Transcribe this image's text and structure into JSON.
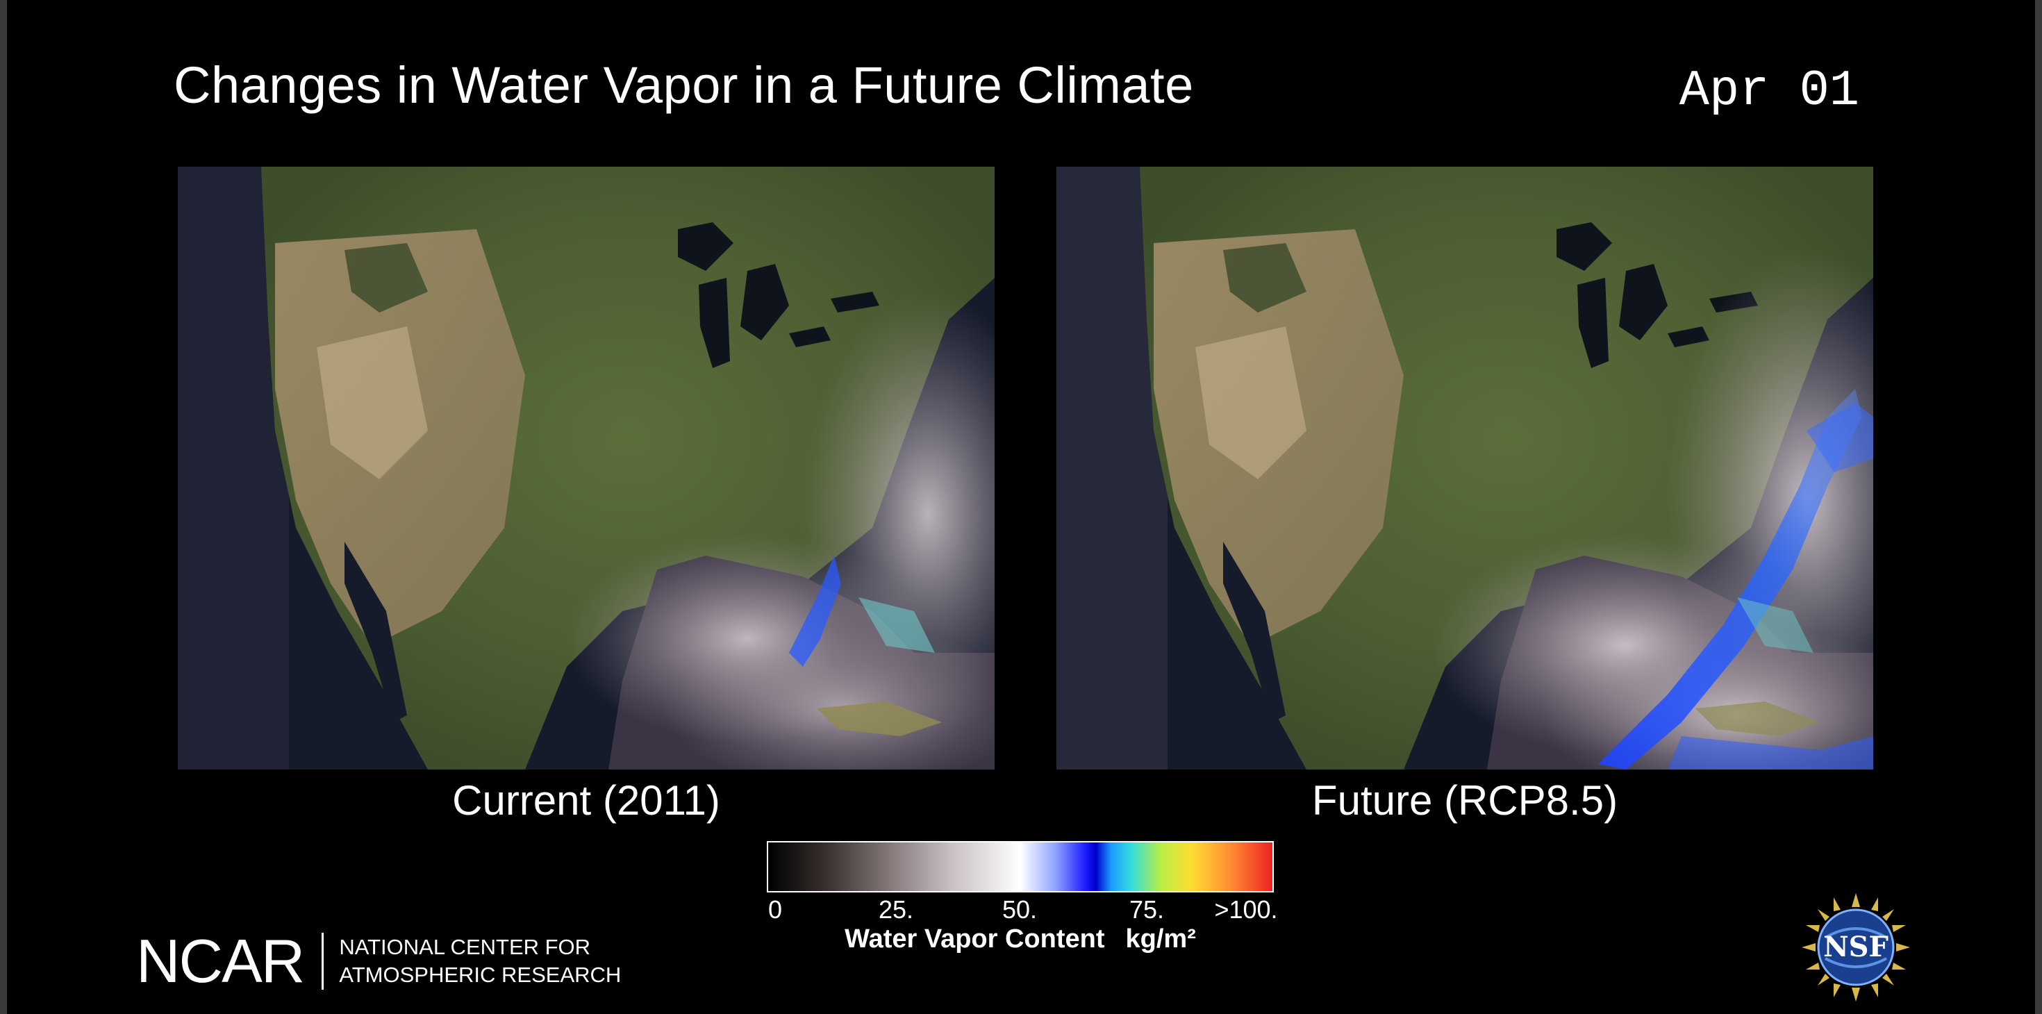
{
  "title": "Changes in Water Vapor in a Future Climate",
  "date": "Apr 01",
  "panels": [
    {
      "caption": "Current (2011)"
    },
    {
      "caption": "Future (RCP8.5)"
    }
  ],
  "colorbar": {
    "ticks": [
      "0",
      "25.",
      "50.",
      "75.",
      ">100."
    ],
    "label": "Water Vapor Content",
    "unit": "kg/m²"
  },
  "logos": {
    "ncar_word": "NCAR",
    "ncar_line1": "NATIONAL CENTER FOR",
    "ncar_line2": "ATMOSPHERIC RESEARCH",
    "nsf": "NSF"
  }
}
